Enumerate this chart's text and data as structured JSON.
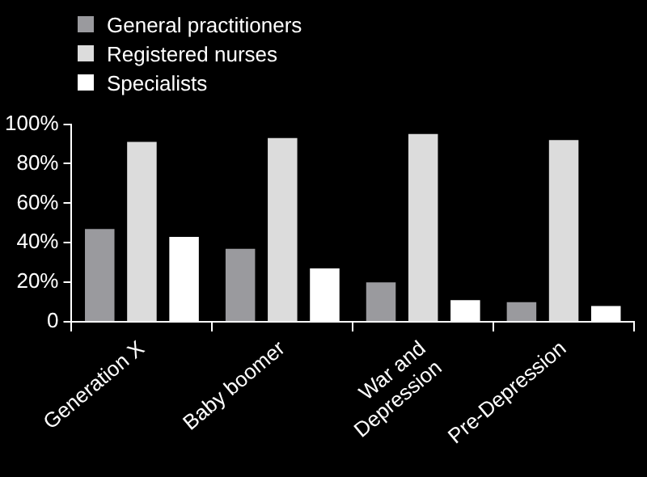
{
  "chart_data": {
    "type": "bar",
    "categories": [
      "Generation X",
      "Baby boomer",
      "War and Depression",
      "Pre-Depression"
    ],
    "series": [
      {
        "name": "General practitioners",
        "color": "#9a9a9e",
        "values": [
          47,
          37,
          20,
          10
        ]
      },
      {
        "name": "Registered nurses",
        "color": "#dcdcdc",
        "values": [
          91,
          93,
          95,
          92
        ]
      },
      {
        "name": "Specialists",
        "color": "#ffffff",
        "values": [
          43,
          27,
          11,
          8
        ]
      }
    ],
    "ylim": [
      0,
      100
    ],
    "yticks": [
      "0",
      {
        "value": 20,
        "label": "20%"
      },
      {
        "value": 40,
        "label": "40%"
      },
      {
        "value": 60,
        "label": "60%"
      },
      {
        "value": 80,
        "label": "80%"
      },
      {
        "value": 100,
        "label": "100%"
      }
    ],
    "grid": false,
    "legend": "top left"
  }
}
